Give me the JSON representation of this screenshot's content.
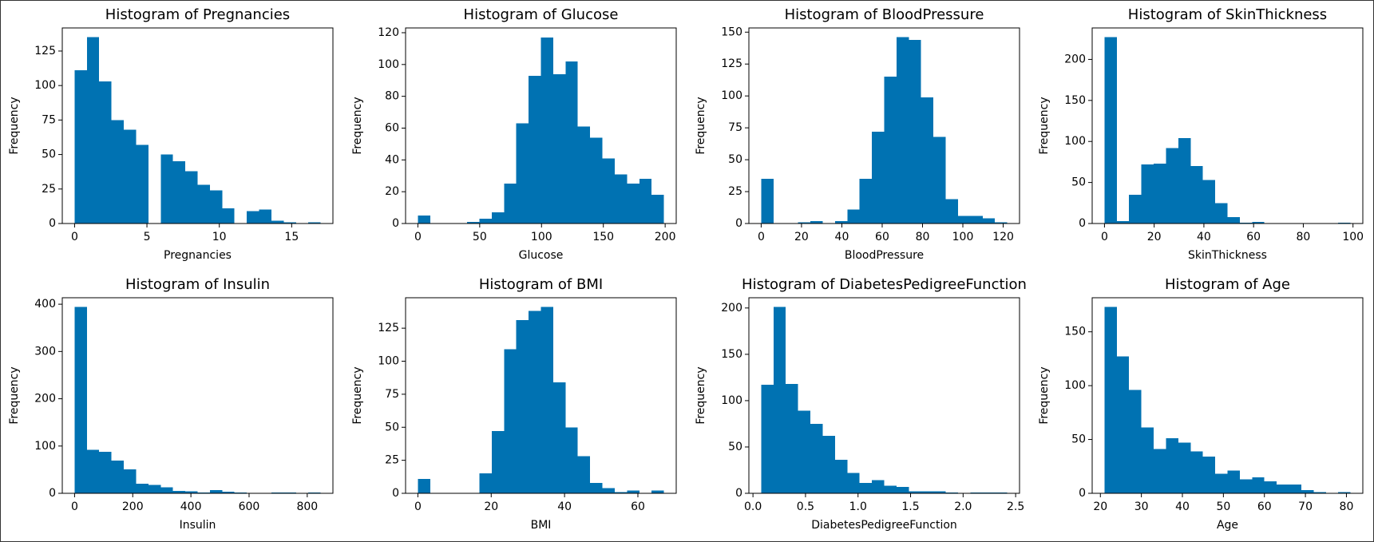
{
  "chart_data": [
    {
      "type": "histogram",
      "title": "Histogram of Pregnancies",
      "xlabel": "Pregnancies",
      "ylabel": "Frequency",
      "color": "#0072b2",
      "bins": [
        0,
        0.85,
        1.7,
        2.55,
        3.4,
        4.25,
        5.1,
        5.95,
        6.8,
        7.65,
        8.5,
        9.35,
        10.2,
        11.05,
        11.9,
        12.75,
        13.6,
        14.45,
        15.3,
        16.15,
        17
      ],
      "values": [
        111,
        135,
        103,
        75,
        68,
        57,
        0,
        50,
        45,
        38,
        28,
        24,
        11,
        0,
        9,
        10,
        2,
        1,
        0,
        1
      ],
      "xlim": [
        -0.85,
        17.85
      ],
      "xticks": [
        0,
        5,
        10,
        15
      ],
      "ylim": [
        0,
        141.75
      ],
      "yticks": [
        0,
        25,
        50,
        75,
        100,
        125
      ]
    },
    {
      "type": "histogram",
      "title": "Histogram of Glucose",
      "xlabel": "Glucose",
      "ylabel": "Frequency",
      "color": "#0072b2",
      "bins": [
        0,
        9.95,
        19.9,
        29.85,
        39.8,
        49.75,
        59.7,
        69.65,
        79.6,
        89.55,
        99.5,
        109.45,
        119.4,
        129.35,
        139.3,
        149.25,
        159.2,
        169.15,
        179.1,
        189.05,
        199
      ],
      "values": [
        5,
        0,
        0,
        0,
        1,
        3,
        7,
        25,
        63,
        93,
        117,
        94,
        102,
        61,
        54,
        41,
        31,
        25,
        28,
        18
      ],
      "xlim": [
        -9.95,
        208.95
      ],
      "xticks": [
        0,
        50,
        100,
        150,
        200
      ],
      "ylim": [
        0,
        123
      ],
      "yticks": [
        0,
        20,
        40,
        60,
        80,
        100,
        120
      ]
    },
    {
      "type": "histogram",
      "title": "Histogram of BloodPressure",
      "xlabel": "BloodPressure",
      "ylabel": "Frequency",
      "color": "#0072b2",
      "bins": [
        0,
        6.1,
        12.2,
        18.3,
        24.4,
        30.5,
        36.6,
        42.7,
        48.8,
        54.9,
        61,
        67.1,
        73.2,
        79.3,
        85.4,
        91.5,
        97.6,
        103.7,
        109.8,
        115.9,
        122
      ],
      "values": [
        35,
        0,
        0,
        1,
        2,
        0,
        2,
        11,
        35,
        72,
        115,
        146,
        144,
        99,
        68,
        19,
        6,
        6,
        4,
        1
      ],
      "xlim": [
        -6.1,
        128.1
      ],
      "xticks": [
        0,
        20,
        40,
        60,
        80,
        100,
        120
      ],
      "ylim": [
        0,
        153.3
      ],
      "yticks": [
        0,
        25,
        50,
        75,
        100,
        125,
        150
      ]
    },
    {
      "type": "histogram",
      "title": "Histogram of SkinThickness",
      "xlabel": "SkinThickness",
      "ylabel": "Frequency",
      "color": "#0072b2",
      "bins": [
        0,
        4.95,
        9.9,
        14.85,
        19.8,
        24.75,
        29.7,
        34.65,
        39.6,
        44.55,
        49.5,
        54.45,
        59.4,
        64.35,
        69.3,
        74.25,
        79.2,
        84.15,
        89.1,
        94.05,
        99
      ],
      "values": [
        227,
        3,
        35,
        72,
        73,
        92,
        104,
        70,
        53,
        25,
        8,
        1,
        2,
        0,
        0,
        0,
        0,
        0,
        0,
        1
      ],
      "xlim": [
        -4.95,
        103.95
      ],
      "xticks": [
        0,
        20,
        40,
        60,
        80,
        100
      ],
      "ylim": [
        0,
        238.35
      ],
      "yticks": [
        0,
        50,
        100,
        150,
        200
      ]
    },
    {
      "type": "histogram",
      "title": "Histogram of Insulin",
      "xlabel": "Insulin",
      "ylabel": "Frequency",
      "color": "#0072b2",
      "bins": [
        0,
        42.3,
        84.6,
        126.9,
        169.2,
        211.5,
        253.8,
        296.1,
        338.4,
        380.7,
        423,
        465.3,
        507.6,
        549.9,
        592.2,
        634.5,
        676.8,
        719.1,
        761.4,
        803.7,
        846
      ],
      "values": [
        394,
        92,
        88,
        69,
        51,
        20,
        18,
        13,
        5,
        4,
        2,
        7,
        3,
        2,
        1,
        0,
        2,
        2,
        0,
        2
      ],
      "xlim": [
        -42.3,
        888.3
      ],
      "xticks": [
        0,
        200,
        400,
        600,
        800
      ],
      "ylim": [
        0,
        413.7
      ],
      "yticks": [
        0,
        100,
        200,
        300,
        400
      ]
    },
    {
      "type": "histogram",
      "title": "Histogram of BMI",
      "xlabel": "BMI",
      "ylabel": "Frequency",
      "color": "#0072b2",
      "bins": [
        0,
        3.355,
        6.71,
        10.065,
        13.42,
        16.775,
        20.13,
        23.485,
        26.84,
        30.195,
        33.55,
        36.905,
        40.26,
        43.615,
        46.97,
        50.325,
        53.68,
        57.035,
        60.39,
        63.745,
        67.1
      ],
      "values": [
        11,
        0,
        0,
        0,
        0,
        15,
        47,
        109,
        131,
        138,
        141,
        84,
        50,
        28,
        8,
        4,
        1,
        2,
        0,
        2
      ],
      "xlim": [
        -3.355,
        70.455
      ],
      "xticks": [
        0,
        20,
        40,
        60
      ],
      "ylim": [
        0,
        148.05
      ],
      "yticks": [
        0,
        25,
        50,
        75,
        100,
        125
      ]
    },
    {
      "type": "histogram",
      "title": "Histogram of DiabetesPedigreeFunction",
      "xlabel": "DiabetesPedigreeFunction",
      "ylabel": "Frequency",
      "color": "#0072b2",
      "bins": [
        0.078,
        0.1951,
        0.3122,
        0.4293,
        0.5464,
        0.6635,
        0.7806,
        0.8977,
        1.0148,
        1.1319,
        1.249,
        1.3661,
        1.4832,
        1.6003,
        1.7174,
        1.8345,
        1.9516,
        2.0687,
        2.1858,
        2.3029,
        2.42
      ],
      "values": [
        117,
        201,
        118,
        89,
        75,
        62,
        36,
        22,
        11,
        14,
        8,
        7,
        2,
        2,
        2,
        1,
        0,
        1,
        1,
        1
      ],
      "xlim": [
        -0.039,
        2.537
      ],
      "xticks": [
        {
          "value": 0,
          "label": "0.0"
        },
        0.5,
        {
          "value": 1,
          "label": "1.0"
        },
        1.5,
        {
          "value": 2,
          "label": "2.0"
        },
        2.5
      ],
      "ylim": [
        0,
        211.05
      ],
      "yticks": [
        0,
        50,
        100,
        150,
        200
      ]
    },
    {
      "type": "histogram",
      "title": "Histogram of Age",
      "xlabel": "Age",
      "ylabel": "Frequency",
      "color": "#0072b2",
      "bins": [
        21,
        24,
        27,
        30,
        33,
        36,
        39,
        42,
        45,
        48,
        51,
        54,
        57,
        60,
        63,
        66,
        69,
        72,
        75,
        78,
        81
      ],
      "values": [
        173,
        127,
        96,
        61,
        41,
        51,
        47,
        39,
        34,
        18,
        21,
        13,
        15,
        11,
        8,
        8,
        3,
        1,
        0,
        1
      ],
      "xlim": [
        18,
        84
      ],
      "xticks": [
        20,
        30,
        40,
        50,
        60,
        70,
        80
      ],
      "ylim": [
        0,
        181.65
      ],
      "yticks": [
        0,
        50,
        100,
        150
      ]
    }
  ]
}
